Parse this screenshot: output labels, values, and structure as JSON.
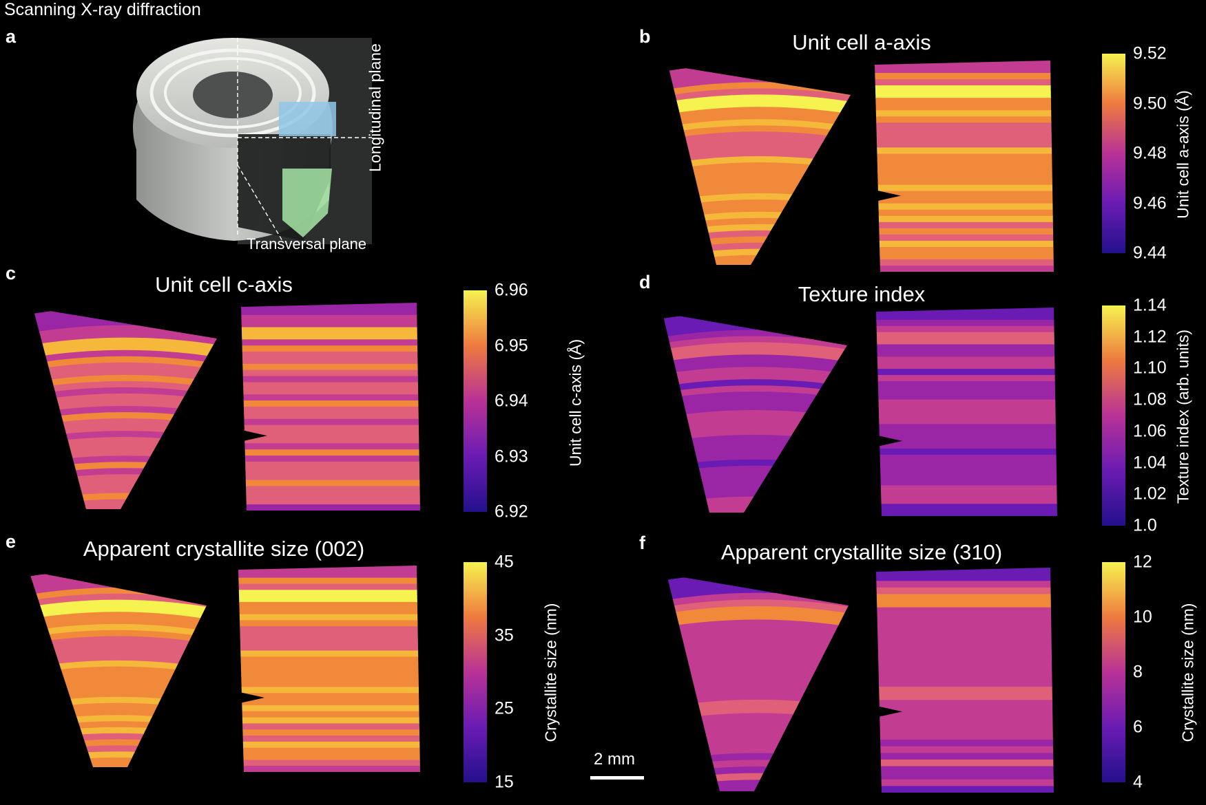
{
  "figure_title": "Scanning X-ray diffraction",
  "panels": {
    "a": {
      "label": "a",
      "longitudinal": "Longitudinal plane",
      "transversal": "Transversal plane"
    },
    "b": {
      "label": "b",
      "title": "Unit cell a-axis",
      "cbar_label": "Unit cell a-axis (Å)",
      "ticks": [
        "9.52",
        "9.50",
        "9.48",
        "9.46",
        "9.44"
      ]
    },
    "c": {
      "label": "c",
      "title": "Unit cell c-axis",
      "cbar_label": "Unit cell c-axis (Å)",
      "ticks": [
        "6.96",
        "6.95",
        "6.94",
        "6.93",
        "6.92"
      ]
    },
    "d": {
      "label": "d",
      "title": "Texture index",
      "cbar_label": "Texture index (arb. units)",
      "ticks": [
        "1.14",
        "1.12",
        "1.10",
        "1.08",
        "1.06",
        "1.04",
        "1.02",
        "1.0"
      ]
    },
    "e": {
      "label": "e",
      "title": "Apparent crystallite size (002)",
      "cbar_label": "Crystallite size (nm)",
      "ticks": [
        "45",
        "35",
        "25",
        "15"
      ]
    },
    "f": {
      "label": "f",
      "title": "Apparent crystallite size (310)",
      "cbar_label": "Crystallite size (nm)",
      "ticks": [
        "12",
        "10",
        "8",
        "6",
        "4"
      ]
    }
  },
  "scale_bar": {
    "label": "2 mm"
  },
  "colormap": "plasma",
  "colors": {
    "low": "#2a0a8a",
    "mid_low": "#7a1bb0",
    "mid": "#c23d92",
    "mid_high": "#f08a3a",
    "high": "#f4f04a"
  }
}
